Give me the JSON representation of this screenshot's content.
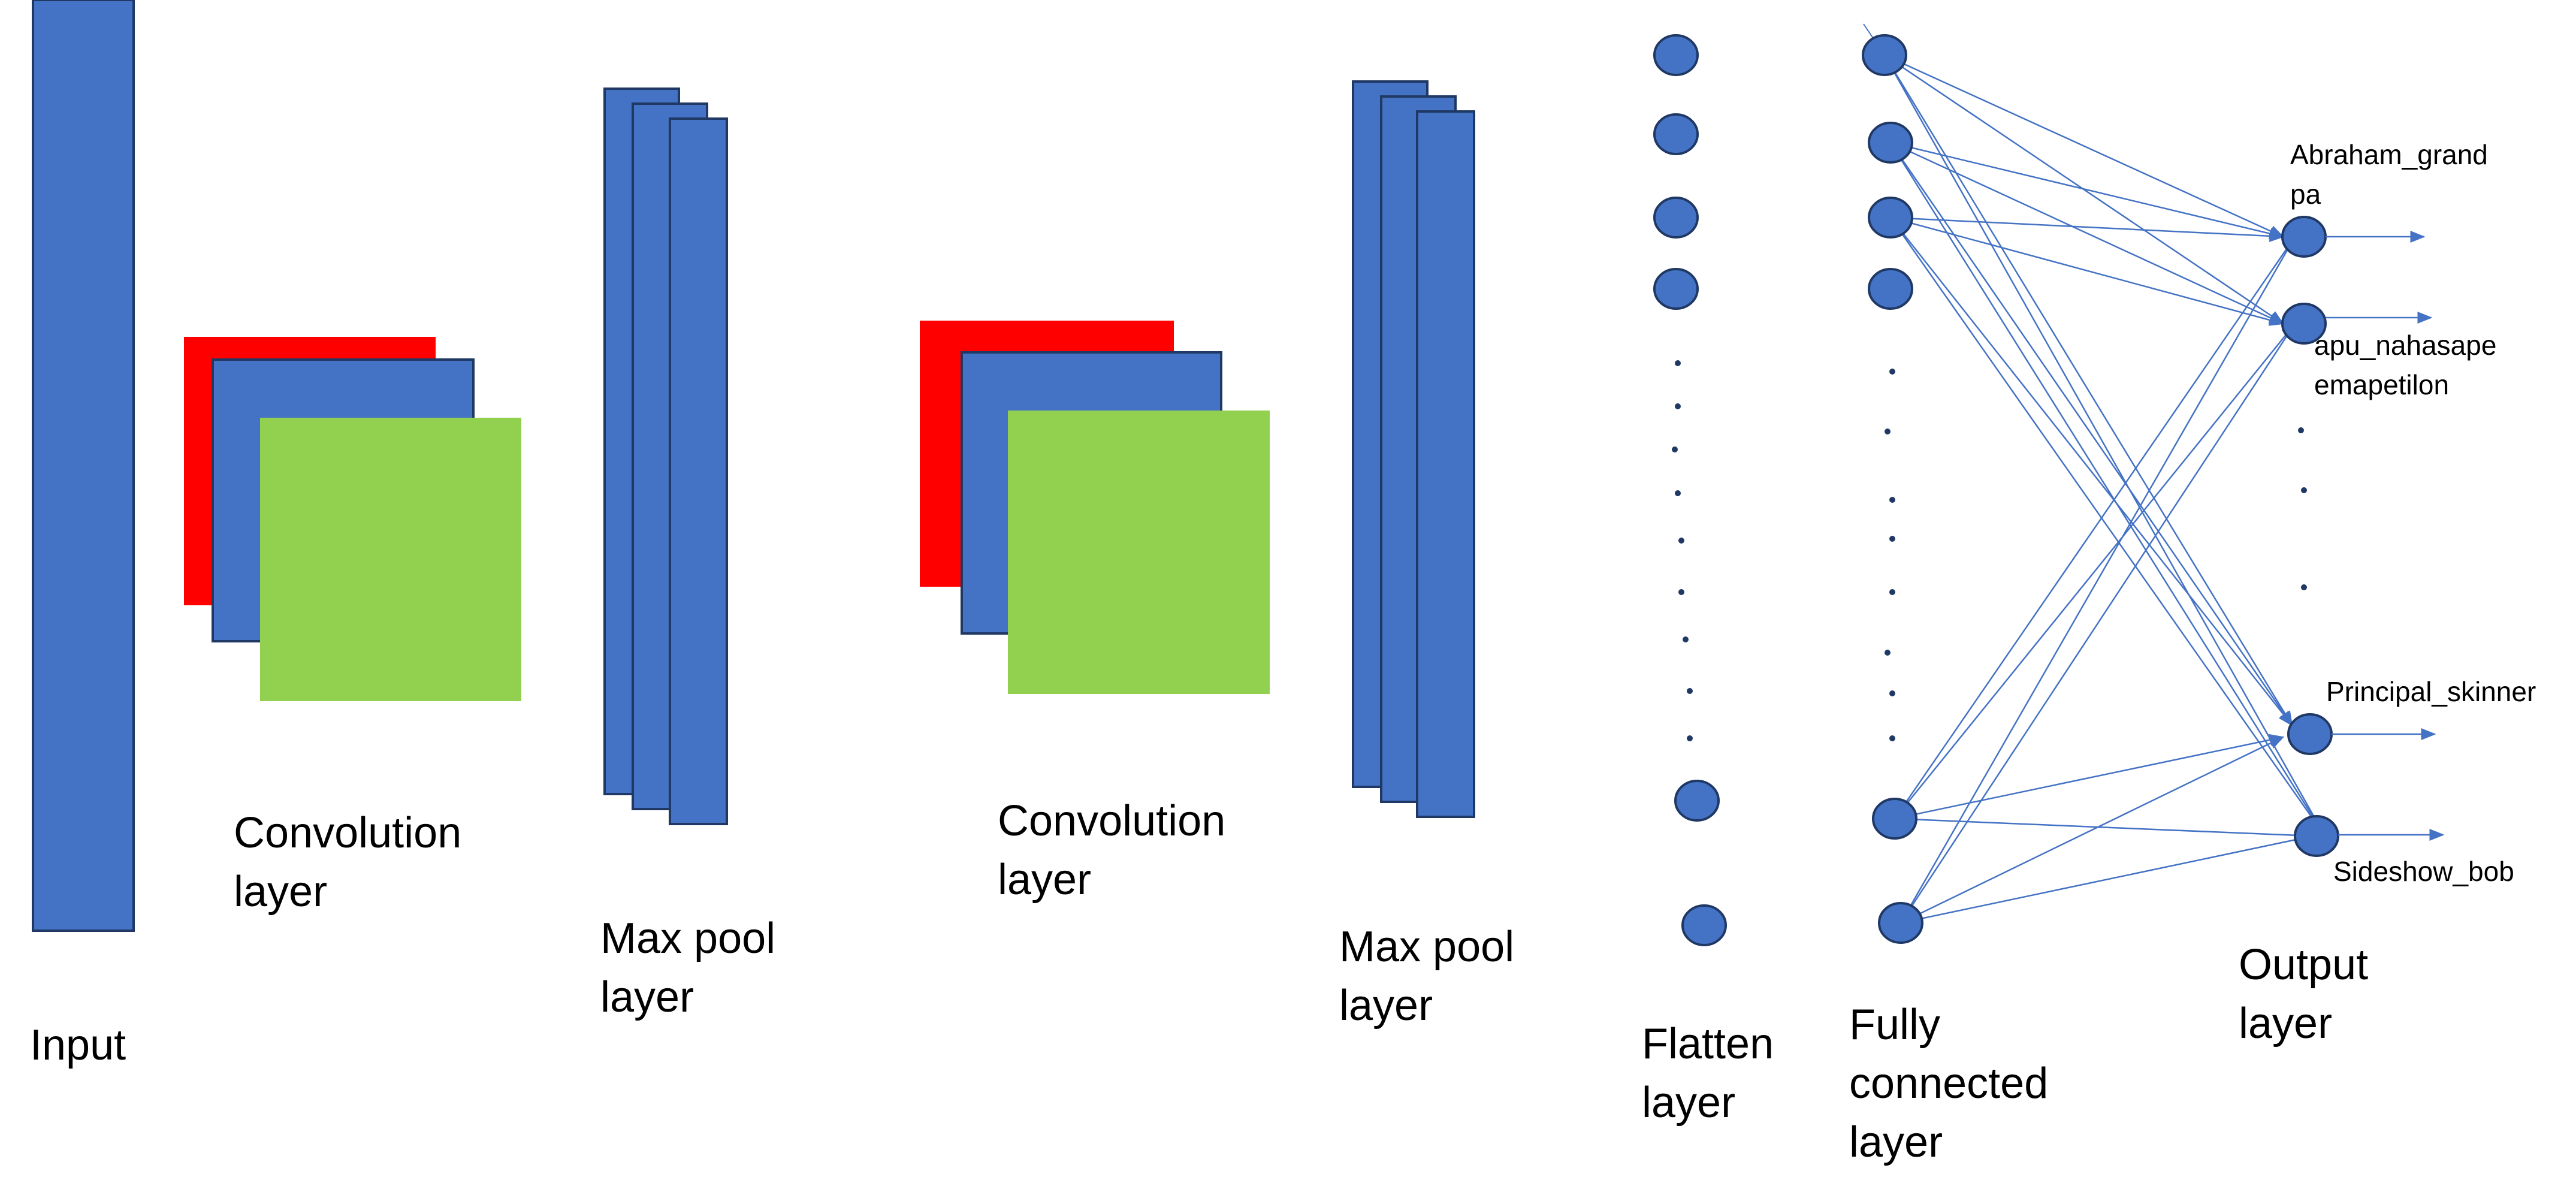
{
  "diagram": {
    "stages": {
      "input": "Input",
      "conv1": [
        "Convolution",
        "layer"
      ],
      "pool1": [
        "Max pool",
        "layer"
      ],
      "conv2": [
        "Convolution",
        "layer"
      ],
      "pool2": [
        "Max pool",
        "layer"
      ],
      "flatten": [
        "Flatten",
        "layer"
      ],
      "fc": [
        "Fully",
        "connected",
        "layer"
      ],
      "output": [
        "Output",
        "layer"
      ]
    },
    "output_classes": {
      "class_1": [
        "Abraham_grand",
        "pa"
      ],
      "class_2": [
        "apu_nahasape",
        "emapetilon"
      ],
      "class_3": "Principal_skinner",
      "class_4": "Sideshow_bob"
    },
    "colors": {
      "layer_blue": "#4472C4",
      "layer_outline": "#1F3864",
      "feature_red": "#FF0000",
      "feature_green": "#92D050",
      "connection": "#4472C4"
    }
  }
}
